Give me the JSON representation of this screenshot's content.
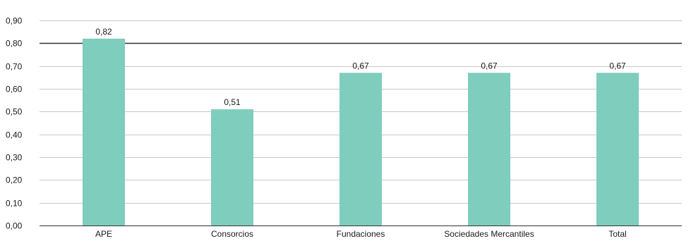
{
  "chart_data": {
    "type": "bar",
    "categories": [
      "APE",
      "Consorcios",
      "Fundaciones",
      "Sociedades Mercantiles",
      "Total"
    ],
    "values": [
      0.82,
      0.51,
      0.67,
      0.67,
      0.67
    ],
    "data_labels": [
      "0,82",
      "0,51",
      "0,67",
      "0,67",
      "0,67"
    ],
    "ylim": [
      0,
      0.9
    ],
    "yticks": [
      0,
      0.1,
      0.2,
      0.3,
      0.4,
      0.5,
      0.6,
      0.7,
      0.8,
      0.9
    ],
    "ytick_labels": [
      "0,00",
      "0,10",
      "0,20",
      "0,30",
      "0,40",
      "0,50",
      "0,60",
      "0,70",
      "0,80",
      "0,90"
    ],
    "reference_line": 0.8,
    "title": "",
    "xlabel": "",
    "ylabel": "",
    "grid": true,
    "legend": "none",
    "colors": {
      "bar": "#7ecdbd",
      "grid": "#c8c8c8",
      "axis": "#333333",
      "reference_line": "#333333",
      "text": "#1a1a1a"
    }
  }
}
